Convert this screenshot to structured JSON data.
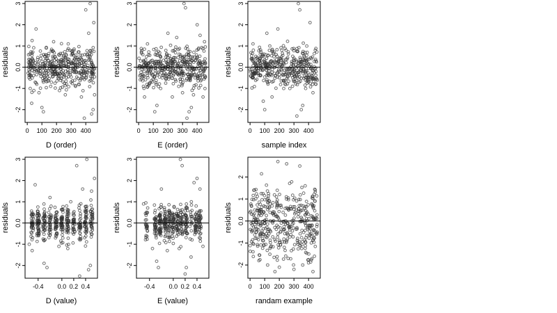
{
  "chart_data": [
    {
      "type": "scatter",
      "xlabel": "D (order)",
      "ylabel": "residuals",
      "xlim": [
        -15,
        480
      ],
      "ylim": [
        -2.6,
        3.1
      ],
      "xticks": [
        0,
        100,
        200,
        300,
        400
      ],
      "yticks": [
        -2,
        -1,
        0,
        1,
        2,
        3
      ],
      "hline": 0,
      "spread": 0.55,
      "seed": 11,
      "points": [
        [
          20,
          -1.0
        ],
        [
          30,
          -1.7
        ],
        [
          45,
          -1.1
        ],
        [
          60,
          1.8
        ],
        [
          80,
          -1.2
        ],
        [
          100,
          -1.9
        ],
        [
          110,
          -2.1
        ],
        [
          130,
          0.9
        ],
        [
          160,
          -0.9
        ],
        [
          180,
          1.2
        ],
        [
          220,
          -1.1
        ],
        [
          260,
          -1.3
        ],
        [
          280,
          1.1
        ],
        [
          300,
          -0.7
        ],
        [
          330,
          -0.9
        ],
        [
          370,
          -1.4
        ],
        [
          390,
          -2.4
        ],
        [
          400,
          2.7
        ],
        [
          420,
          1.6
        ],
        [
          430,
          3.0
        ],
        [
          440,
          -2.2
        ],
        [
          450,
          -2.0
        ],
        [
          455,
          2.1
        ],
        [
          460,
          -1.3
        ]
      ]
    },
    {
      "type": "scatter",
      "xlabel": "E (order)",
      "ylabel": "residuals",
      "xlim": [
        -15,
        480
      ],
      "ylim": [
        -2.6,
        3.1
      ],
      "xticks": [
        0,
        100,
        200,
        300,
        400
      ],
      "yticks": [
        -2,
        -1,
        0,
        1,
        2,
        3
      ],
      "hline": 0,
      "spread": 0.55,
      "seed": 23,
      "points": [
        [
          40,
          -1.4
        ],
        [
          60,
          1.1
        ],
        [
          110,
          -2.1
        ],
        [
          125,
          -1.8
        ],
        [
          150,
          -1.0
        ],
        [
          200,
          1.6
        ],
        [
          230,
          -1.4
        ],
        [
          260,
          1.4
        ],
        [
          300,
          -1.2
        ],
        [
          310,
          3.0
        ],
        [
          320,
          2.8
        ],
        [
          330,
          -2.4
        ],
        [
          345,
          -2.1
        ],
        [
          360,
          -1.9
        ],
        [
          375,
          -1.3
        ],
        [
          400,
          2.0
        ],
        [
          420,
          1.5
        ],
        [
          440,
          -1.4
        ],
        [
          450,
          1.2
        ]
      ]
    },
    {
      "type": "scatter",
      "xlabel": "sample index",
      "ylabel": "residuals",
      "xlim": [
        -15,
        480
      ],
      "ylim": [
        -2.6,
        3.1
      ],
      "xticks": [
        0,
        100,
        200,
        300,
        400
      ],
      "yticks": [
        -2,
        -1,
        0,
        1,
        2,
        3
      ],
      "hline": 0,
      "spread": 0.55,
      "seed": 37,
      "points": [
        [
          20,
          1.1
        ],
        [
          90,
          -1.6
        ],
        [
          100,
          -2.0
        ],
        [
          115,
          1.6
        ],
        [
          150,
          -1.4
        ],
        [
          190,
          1.8
        ],
        [
          230,
          -1.0
        ],
        [
          320,
          -2.3
        ],
        [
          330,
          3.0
        ],
        [
          340,
          2.7
        ],
        [
          350,
          -2.0
        ],
        [
          360,
          -1.8
        ],
        [
          380,
          -1.0
        ],
        [
          410,
          2.1
        ],
        [
          430,
          -1.2
        ],
        [
          450,
          -0.8
        ]
      ]
    },
    {
      "type": "scatter",
      "xlabel": "D (value)",
      "ylabel": "residuals",
      "xlim": [
        -0.62,
        0.6
      ],
      "ylim": [
        -2.6,
        3.1
      ],
      "xticks": [
        -0.4,
        0.0,
        0.2,
        0.4
      ],
      "yticks": [
        -2,
        -1,
        0,
        1,
        2,
        3
      ],
      "hline": 0,
      "spread": 0.5,
      "seed": 41,
      "points": [
        [
          -0.55,
          -1.0
        ],
        [
          -0.5,
          -1.3
        ],
        [
          -0.45,
          1.8
        ],
        [
          -0.3,
          -1.9
        ],
        [
          -0.25,
          -2.1
        ],
        [
          -0.2,
          1.2
        ],
        [
          -0.05,
          -1.1
        ],
        [
          0.1,
          -1.2
        ],
        [
          0.15,
          1.0
        ],
        [
          0.25,
          2.7
        ],
        [
          0.3,
          -2.5
        ],
        [
          0.35,
          1.6
        ],
        [
          0.42,
          3.0
        ],
        [
          0.45,
          -2.2
        ],
        [
          0.48,
          -2.0
        ],
        [
          0.55,
          2.1
        ],
        [
          0.5,
          1.5
        ]
      ]
    },
    {
      "type": "scatter",
      "xlabel": "E (value)",
      "ylabel": "residuals",
      "xlim": [
        -0.62,
        0.6
      ],
      "ylim": [
        -2.6,
        3.1
      ],
      "xticks": [
        -0.4,
        0.0,
        0.2,
        0.4
      ],
      "yticks": [
        -2,
        -1,
        0,
        1,
        2,
        3
      ],
      "hline": 0,
      "spread": 0.5,
      "seed": 53,
      "points": [
        [
          -0.5,
          0.9
        ],
        [
          -0.35,
          -1.2
        ],
        [
          -0.28,
          -1.8
        ],
        [
          -0.25,
          -2.1
        ],
        [
          -0.2,
          1.6
        ],
        [
          -0.1,
          -1.3
        ],
        [
          0.1,
          -1.2
        ],
        [
          0.12,
          3.0
        ],
        [
          0.15,
          2.7
        ],
        [
          0.2,
          -2.4
        ],
        [
          0.22,
          -2.1
        ],
        [
          0.3,
          -1.6
        ],
        [
          0.35,
          1.9
        ],
        [
          0.4,
          2.1
        ],
        [
          0.45,
          1.6
        ],
        [
          0.5,
          -1.1
        ]
      ]
    },
    {
      "type": "scatter",
      "xlabel": "randam example",
      "ylabel": "residuals",
      "xlim": [
        -15,
        480
      ],
      "ylim": [
        -2.6,
        2.9
      ],
      "xticks": [
        0,
        100,
        200,
        300,
        400
      ],
      "yticks": [
        -2,
        -1,
        0,
        1,
        2
      ],
      "hline": 0,
      "spread": 1.0,
      "seed": 67,
      "points": [
        [
          190,
          2.7
        ],
        [
          250,
          2.6
        ],
        [
          340,
          2.5
        ],
        [
          20,
          -1.4
        ],
        [
          60,
          -1.8
        ],
        [
          120,
          -2.0
        ],
        [
          170,
          -2.3
        ],
        [
          200,
          -2.1
        ],
        [
          260,
          -1.7
        ],
        [
          300,
          -2.2
        ],
        [
          360,
          -2.0
        ],
        [
          400,
          -1.9
        ],
        [
          430,
          -2.3
        ],
        [
          440,
          -1.6
        ]
      ]
    }
  ]
}
